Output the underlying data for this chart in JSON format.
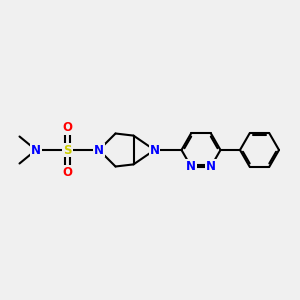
{
  "bg_color": "#f0f0f0",
  "bond_color": "#000000",
  "N_color": "#0000ff",
  "S_color": "#cccc00",
  "O_color": "#ff0000",
  "line_width": 1.5,
  "font_size": 8.5,
  "fig_width": 3.0,
  "fig_height": 3.0,
  "dpi": 100,
  "xlim": [
    0,
    10
  ],
  "ylim": [
    0,
    10
  ]
}
